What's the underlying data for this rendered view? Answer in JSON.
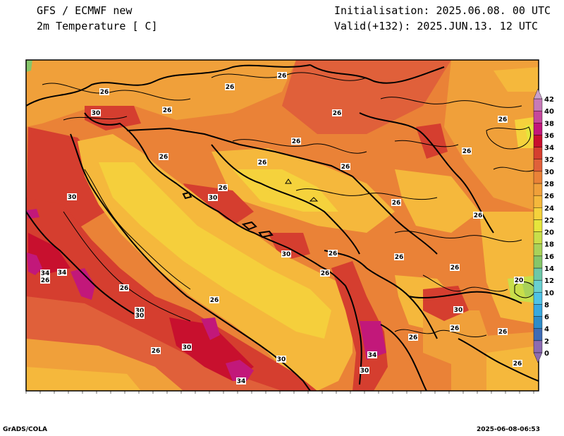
{
  "header": {
    "model": "GFS / ECMWF new",
    "field": "2m Temperature [ C]",
    "init": "Initialisation: 2025.06.08. 00 UTC",
    "valid": "Valid(+132): 2025.JUN.13. 12 UTC"
  },
  "footer": {
    "software": "GrADS/COLA",
    "timestamp": "2025-06-08-06:53"
  },
  "colorbar": {
    "levels": [
      "0",
      "2",
      "4",
      "6",
      "8",
      "10",
      "12",
      "14",
      "16",
      "18",
      "20",
      "22",
      "24",
      "26",
      "28",
      "30",
      "32",
      "34",
      "36",
      "38",
      "40",
      "42"
    ],
    "colors": [
      "#8c6bb1",
      "#3e6bb5",
      "#2f8cc8",
      "#39a9de",
      "#4fc3e6",
      "#69d0d0",
      "#6dc8a8",
      "#86c66a",
      "#a9d25a",
      "#c9de4a",
      "#e6e63c",
      "#f5d23c",
      "#f5b83c",
      "#f0a03a",
      "#ea8237",
      "#e0603a",
      "#d53e2f",
      "#c8102e",
      "#c2187a",
      "#c6489c",
      "#c77ab8",
      "#c8a0cc"
    ]
  },
  "map": {
    "contour_labels": [
      {
        "text": "26"
      },
      {
        "text": "26"
      },
      {
        "text": "26"
      },
      {
        "text": "26"
      },
      {
        "text": "30"
      },
      {
        "text": "26"
      },
      {
        "text": "26"
      },
      {
        "text": "26"
      },
      {
        "text": "26"
      },
      {
        "text": "30"
      },
      {
        "text": "26"
      },
      {
        "text": "26"
      },
      {
        "text": "26"
      },
      {
        "text": "26"
      },
      {
        "text": "30"
      },
      {
        "text": "30"
      },
      {
        "text": "26"
      },
      {
        "text": "26"
      },
      {
        "text": "26"
      },
      {
        "text": "26"
      },
      {
        "text": "30"
      },
      {
        "text": "26"
      },
      {
        "text": "20"
      },
      {
        "text": "34"
      },
      {
        "text": "34"
      },
      {
        "text": "26"
      },
      {
        "text": "26"
      },
      {
        "text": "30"
      },
      {
        "text": "26"
      },
      {
        "text": "26"
      },
      {
        "text": "26"
      },
      {
        "text": "30"
      },
      {
        "text": "30"
      },
      {
        "text": "26"
      },
      {
        "text": "34"
      },
      {
        "text": "30"
      },
      {
        "text": "26"
      },
      {
        "text": "26"
      },
      {
        "text": "34"
      },
      {
        "text": "30"
      },
      {
        "text": "26"
      }
    ]
  }
}
